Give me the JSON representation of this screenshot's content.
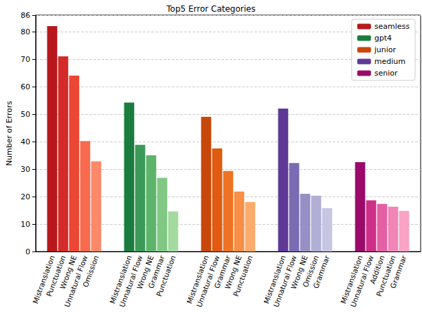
{
  "chart_data": {
    "type": "bar",
    "title": "Top5 Error Categories",
    "y_label": "Number of Errors",
    "ylim": [
      0,
      86
    ],
    "yticks": [
      0,
      10,
      20,
      30,
      40,
      50,
      60,
      70,
      80
    ],
    "grid": true,
    "legend": "upper right",
    "series": [
      {
        "name": "seamless",
        "color": "#b8181c",
        "categories": [
          "Mistranslation",
          "Punctuation",
          "Wrong NE",
          "Unnatural Flow",
          "Omission"
        ],
        "values": [
          82,
          71,
          64,
          40.2,
          32.8
        ],
        "colors": [
          "#b8181c",
          "#d42a2a",
          "#ec4634",
          "#f86a4d",
          "#fc8a6a"
        ]
      },
      {
        "name": "gpt4",
        "color": "#1a7c3e",
        "categories": [
          "Mistranslation",
          "Unnatural Flow",
          "Wrong NE",
          "Grammar",
          "Punctuation"
        ],
        "values": [
          54.2,
          38.8,
          35,
          26.8,
          14.6
        ],
        "colors": [
          "#1a7c3e",
          "#3b9a57",
          "#5cb46b",
          "#80c883",
          "#a3da9f"
        ]
      },
      {
        "name": "junior",
        "color": "#c8470a",
        "categories": [
          "Mistranslation",
          "Unnatural Flow",
          "Grammar",
          "Wrong NE",
          "Punctuation"
        ],
        "values": [
          49,
          37.5,
          29.3,
          21.8,
          18
        ],
        "colors": [
          "#c8470a",
          "#e05a0f",
          "#ee7424",
          "#f98e45",
          "#fdab6d"
        ]
      },
      {
        "name": "medium",
        "color": "#5e3a96",
        "categories": [
          "Mistranslation",
          "Unnatural Flow",
          "Wrong NE",
          "Omission",
          "Grammar"
        ],
        "values": [
          52,
          32.2,
          21,
          20.3,
          15.8
        ],
        "colors": [
          "#5e3a96",
          "#7a6bb2",
          "#9690c4",
          "#b1afd6",
          "#c6c5e2"
        ]
      },
      {
        "name": "senior",
        "color": "#9b0a6a",
        "categories": [
          "Mistranslation",
          "Unnatural Flow",
          "Addition",
          "Punctuation",
          "Grammar"
        ],
        "values": [
          32.5,
          18.6,
          17.3,
          16.3,
          14.8
        ],
        "colors": [
          "#9b0a6a",
          "#cd2f87",
          "#e360a3",
          "#f185b5",
          "#f9a3c5"
        ]
      }
    ]
  }
}
